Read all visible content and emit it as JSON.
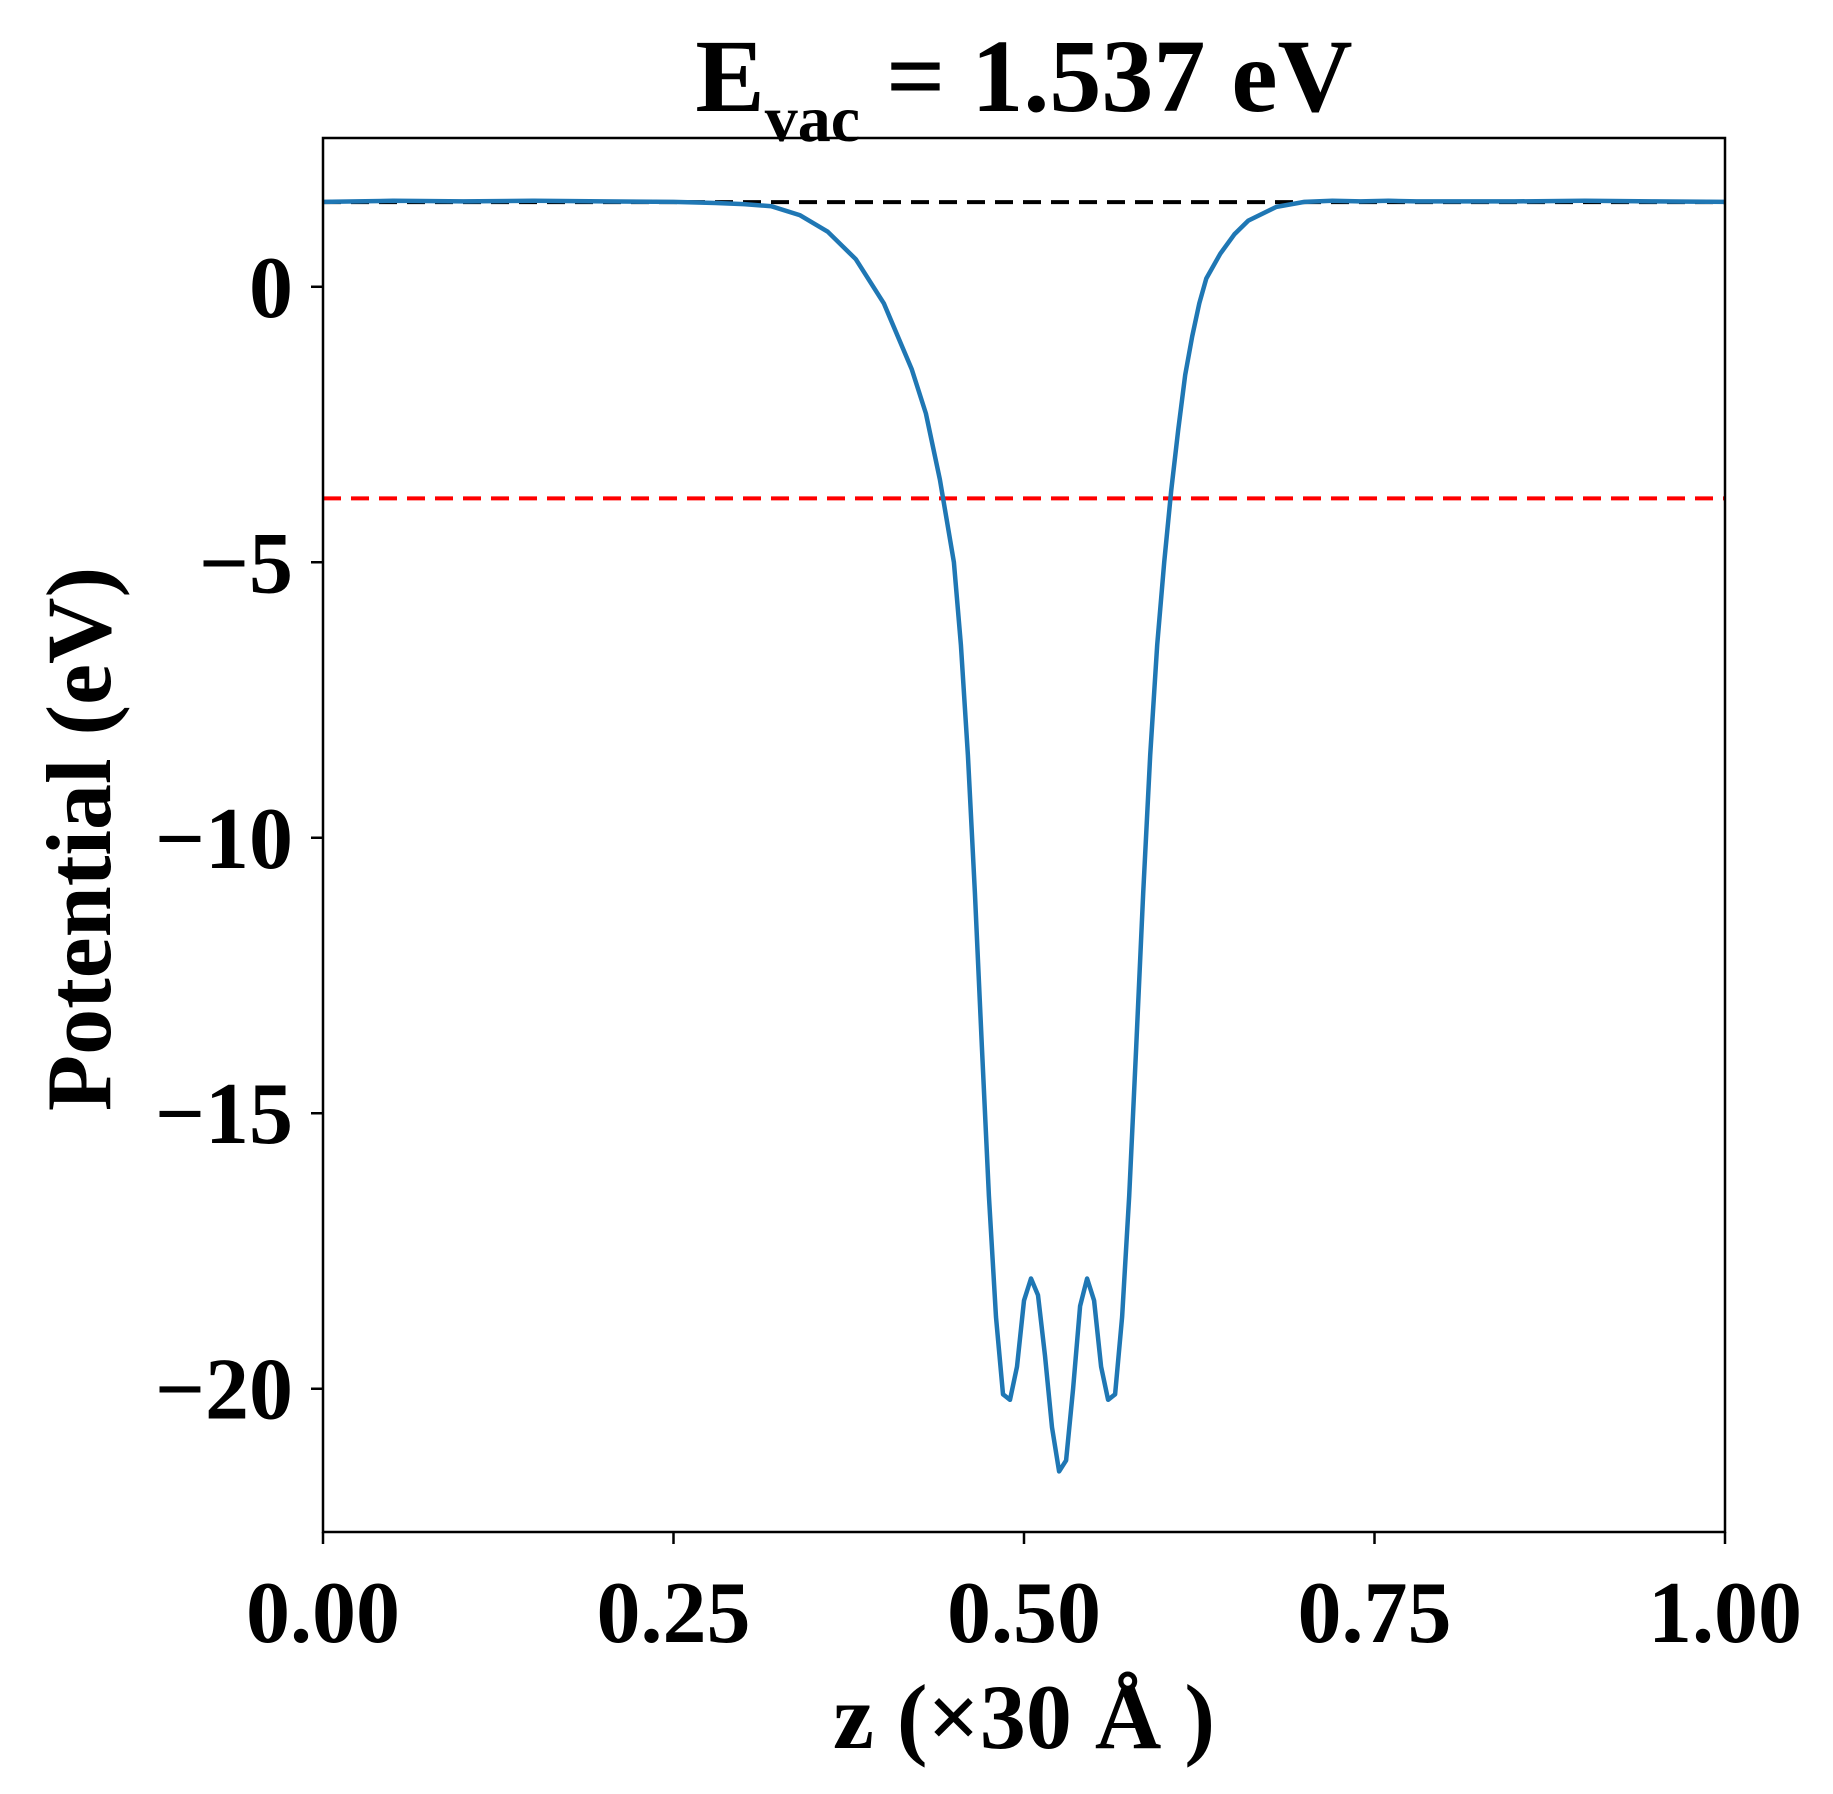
{
  "chart_data": {
    "type": "line",
    "title": {
      "main": "E",
      "subscript": "vac",
      "rest": " = 1.537 eV"
    },
    "xlabel": "z (×30 Å )",
    "ylabel": "Potential (eV)",
    "xlim": [
      0.0,
      1.0
    ],
    "ylim": [
      -22.6,
      2.7
    ],
    "x_ticks": [
      {
        "value": 0.0,
        "label": "0.00"
      },
      {
        "value": 0.25,
        "label": "0.25"
      },
      {
        "value": 0.5,
        "label": "0.50"
      },
      {
        "value": 0.75,
        "label": "0.75"
      },
      {
        "value": 1.0,
        "label": "1.00"
      }
    ],
    "y_ticks": [
      {
        "value": 0,
        "label": "0"
      },
      {
        "value": -5,
        "label": "−5"
      },
      {
        "value": -10,
        "label": "−10"
      },
      {
        "value": -15,
        "label": "−15"
      },
      {
        "value": -20,
        "label": "−20"
      }
    ],
    "grid": false,
    "reference_lines": [
      {
        "name": "vacuum-level",
        "y": 1.537,
        "color": "#000000",
        "style": "dashed"
      },
      {
        "name": "red-level",
        "y": -3.84,
        "color": "#ff0000",
        "style": "dashed"
      }
    ],
    "series": [
      {
        "color": "#1f77b4",
        "x": [
          0.0,
          0.05,
          0.1,
          0.15,
          0.2,
          0.25,
          0.28,
          0.3,
          0.32,
          0.34,
          0.36,
          0.38,
          0.4,
          0.42,
          0.43,
          0.44,
          0.45,
          0.455,
          0.46,
          0.465,
          0.47,
          0.475,
          0.48,
          0.485,
          0.49,
          0.495,
          0.5,
          0.505,
          0.51,
          0.515,
          0.52,
          0.525,
          0.53,
          0.535,
          0.54,
          0.545,
          0.55,
          0.555,
          0.56,
          0.565,
          0.57,
          0.575,
          0.58,
          0.585,
          0.59,
          0.595,
          0.6,
          0.605,
          0.61,
          0.615,
          0.62,
          0.625,
          0.63,
          0.64,
          0.65,
          0.66,
          0.68,
          0.7,
          0.72,
          0.74,
          0.76,
          0.78,
          0.8,
          0.85,
          0.9,
          0.95,
          1.0
        ],
        "values": [
          1.54,
          1.56,
          1.55,
          1.56,
          1.55,
          1.54,
          1.52,
          1.5,
          1.46,
          1.3,
          1.0,
          0.5,
          -0.3,
          -1.5,
          -2.3,
          -3.5,
          -5.0,
          -6.5,
          -8.5,
          -11.0,
          -13.8,
          -16.5,
          -18.7,
          -20.1,
          -20.2,
          -19.6,
          -18.4,
          -18.0,
          -18.3,
          -19.4,
          -20.7,
          -21.5,
          -21.3,
          -20.0,
          -18.5,
          -18.0,
          -18.4,
          -19.6,
          -20.2,
          -20.1,
          -18.7,
          -16.5,
          -13.8,
          -11.0,
          -8.5,
          -6.5,
          -5.0,
          -3.7,
          -2.6,
          -1.6,
          -0.9,
          -0.3,
          0.15,
          0.6,
          0.95,
          1.2,
          1.45,
          1.54,
          1.56,
          1.55,
          1.56,
          1.55,
          1.55,
          1.55,
          1.56,
          1.55,
          1.54
        ]
      }
    ]
  }
}
